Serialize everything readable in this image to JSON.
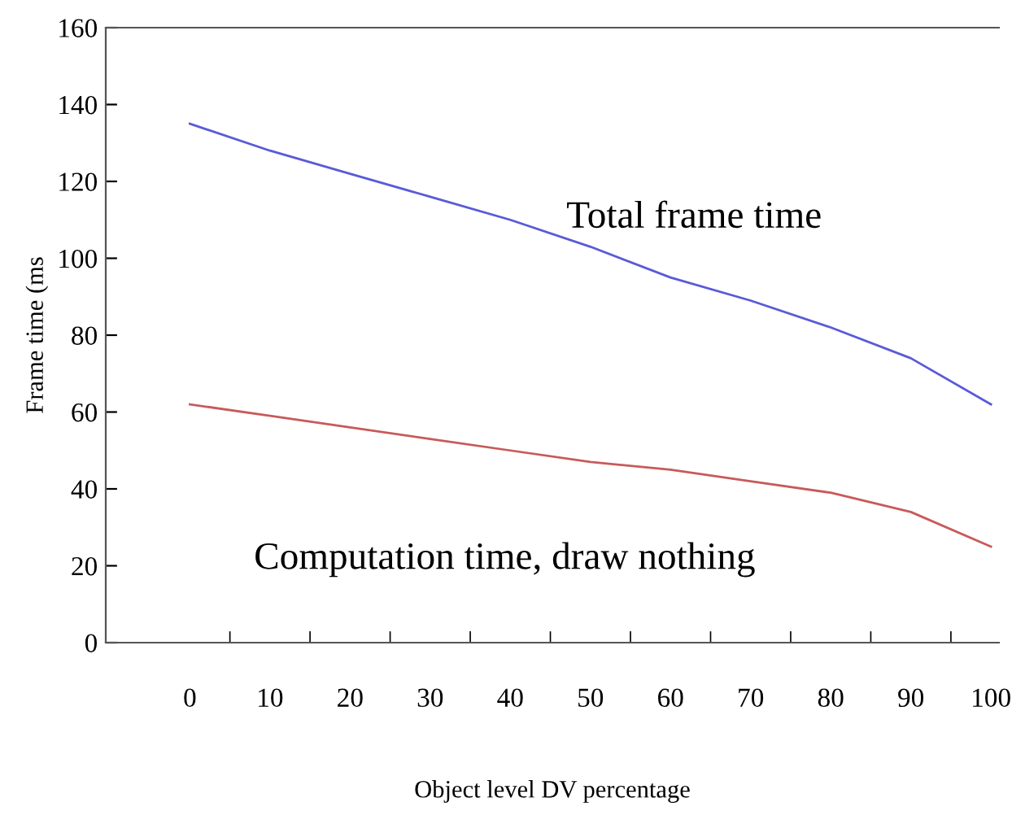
{
  "chart_data": {
    "type": "line",
    "xlabel": "Object level DV percentage",
    "ylabel": "Frame time (ms",
    "categories": [
      "0",
      "10",
      "20",
      "30",
      "40",
      "50",
      "60",
      "70",
      "80",
      "90",
      "100"
    ],
    "series": [
      {
        "name": "Total frame time",
        "color": "#5a5ad8",
        "values": [
          135,
          128,
          122,
          116,
          110,
          103,
          95,
          89,
          82,
          74,
          62
        ]
      },
      {
        "name": "Computation time, draw nothing",
        "color": "#c85a5a",
        "values": [
          62,
          59,
          56,
          53,
          50,
          47,
          45,
          42,
          39,
          34,
          25
        ]
      }
    ],
    "ylim": [
      0,
      160
    ],
    "yticks": [
      0,
      20,
      40,
      60,
      80,
      100,
      120,
      140,
      160
    ],
    "grid": false,
    "legend": false,
    "marker": "none",
    "line_style": "solid"
  }
}
